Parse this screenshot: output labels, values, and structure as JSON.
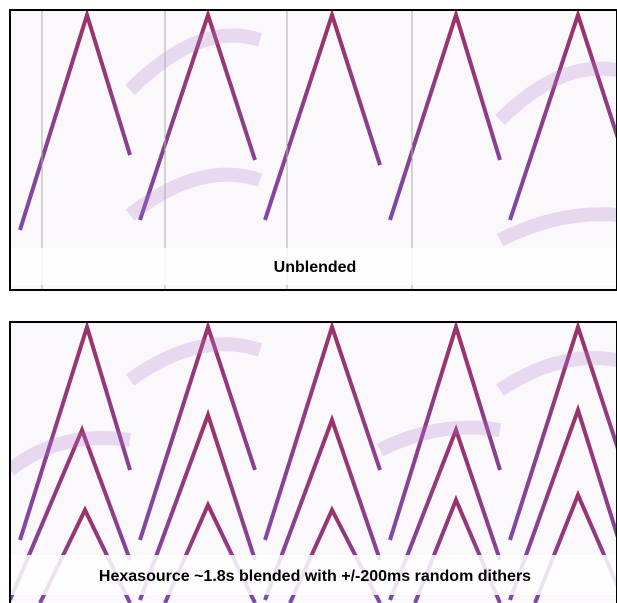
{
  "panels": [
    {
      "label": "Unblended"
    },
    {
      "label": "Hexasource ~1.8s blended with +/-200ms random dithers"
    }
  ]
}
